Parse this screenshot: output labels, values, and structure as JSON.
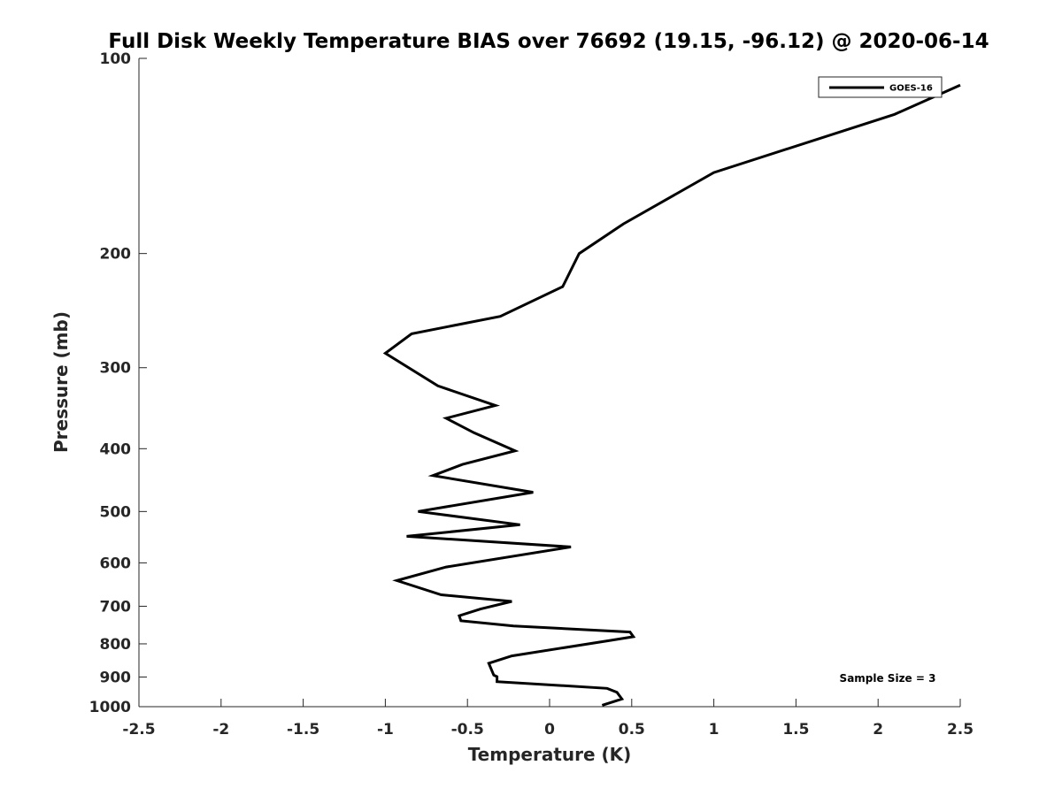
{
  "chart_data": {
    "type": "line",
    "title": "Full Disk Weekly Temperature BIAS over 76692 (19.15, -96.12) @ 2020-06-14",
    "xlabel": "Temperature (K)",
    "ylabel": "Pressure (mb)",
    "xlim": [
      -2.5,
      2.5
    ],
    "ylim": [
      100,
      1000
    ],
    "y_scale": "log",
    "y_reversed": true,
    "x_ticks": [
      "-2.5",
      "-2",
      "-1.5",
      "-1",
      "-0.5",
      "0",
      "0.5",
      "1",
      "1.5",
      "2",
      "2.5"
    ],
    "x_tick_values": [
      -2.5,
      -2,
      -1.5,
      -1,
      -0.5,
      0,
      0.5,
      1,
      1.5,
      2,
      2.5
    ],
    "y_ticks": [
      "100",
      "200",
      "300",
      "400",
      "500",
      "600",
      "700",
      "800",
      "900",
      "1000"
    ],
    "y_tick_values": [
      100,
      200,
      300,
      400,
      500,
      600,
      700,
      800,
      900,
      1000
    ],
    "grid": false,
    "legend_position": "top-right",
    "series": [
      {
        "name": "GOES-16",
        "color": "#000000",
        "points": [
          [
            2.5,
            110
          ],
          [
            2.1,
            122
          ],
          [
            1.0,
            150
          ],
          [
            0.45,
            180
          ],
          [
            0.18,
            200
          ],
          [
            0.08,
            225
          ],
          [
            -0.3,
            250
          ],
          [
            -0.84,
            266
          ],
          [
            -1.0,
            285
          ],
          [
            -0.68,
            320
          ],
          [
            -0.33,
            343
          ],
          [
            -0.63,
            359
          ],
          [
            -0.46,
            378
          ],
          [
            -0.21,
            403
          ],
          [
            -0.53,
            423
          ],
          [
            -0.71,
            440
          ],
          [
            -0.1,
            467
          ],
          [
            -0.8,
            500
          ],
          [
            -0.18,
            524
          ],
          [
            -0.87,
            546
          ],
          [
            0.13,
            567
          ],
          [
            -0.63,
            609
          ],
          [
            -0.93,
            639
          ],
          [
            -0.66,
            672
          ],
          [
            -0.23,
            688
          ],
          [
            -0.42,
            707
          ],
          [
            -0.55,
            724
          ],
          [
            -0.54,
            737
          ],
          [
            -0.22,
            751
          ],
          [
            0.49,
            767
          ],
          [
            0.51,
            780
          ],
          [
            0.36,
            791
          ],
          [
            -0.23,
            835
          ],
          [
            -0.37,
            857
          ],
          [
            -0.34,
            894
          ],
          [
            -0.32,
            899
          ],
          [
            -0.32,
            915
          ],
          [
            0.35,
            937
          ],
          [
            0.41,
            950
          ],
          [
            0.44,
            973
          ],
          [
            0.32,
            995
          ]
        ]
      }
    ],
    "annotation": "Sample Size = 3"
  }
}
